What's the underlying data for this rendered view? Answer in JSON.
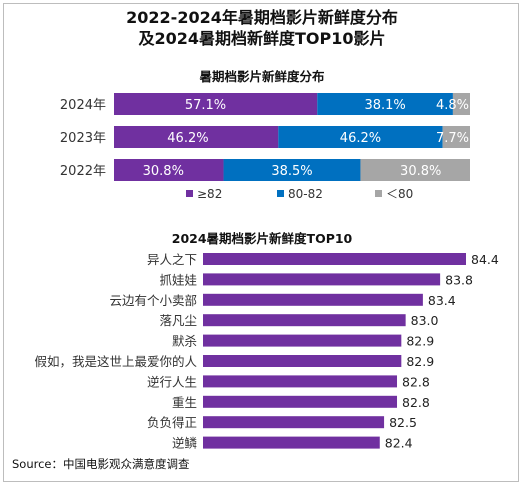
{
  "title_line1": "2022-2024年暑期档影片新鲜度分布",
  "title_line2": "及2024暑期档新鲜度TOP10影片",
  "source": "Source：中国电影观众满意度调查",
  "colors": {
    "high": "#7030a0",
    "mid": "#0070c0",
    "low": "#a6a6a6",
    "top10": "#7030a0"
  },
  "chart_data": [
    {
      "type": "bar",
      "stacked": true,
      "orientation": "horizontal",
      "title": "暑期档影片新鲜度分布",
      "categories": [
        "2024年",
        "2023年",
        "2022年"
      ],
      "series": [
        {
          "name": "≥82",
          "values": [
            57.1,
            46.2,
            30.8
          ],
          "labels": [
            "57.1%",
            "46.2%",
            "30.8%"
          ]
        },
        {
          "name": "80-82",
          "values": [
            38.1,
            46.2,
            38.5
          ],
          "labels": [
            "38.1%",
            "46.2%",
            "38.5%"
          ]
        },
        {
          "name": "＜80",
          "values": [
            4.8,
            7.7,
            30.8
          ],
          "labels": [
            "4.8%",
            "7.7%",
            "30.8%"
          ]
        }
      ],
      "legend_position": "bottom",
      "grid": false
    },
    {
      "type": "bar",
      "orientation": "horizontal",
      "title": "2024暑期档影片新鲜度TOP10",
      "categories": [
        "异人之下",
        "抓娃娃",
        "云边有个小卖部",
        "落凡尘",
        "默杀",
        "假如，我是这世上最爱你的人",
        "逆行人生",
        "重生",
        "负负得正",
        "逆鳞"
      ],
      "values": [
        84.4,
        83.8,
        83.4,
        83.0,
        82.9,
        82.9,
        82.8,
        82.8,
        82.5,
        82.4
      ],
      "labels": [
        "84.4",
        "83.8",
        "83.4",
        "83.0",
        "82.9",
        "82.9",
        "82.8",
        "82.8",
        "82.5",
        "82.4"
      ],
      "grid": false
    }
  ]
}
